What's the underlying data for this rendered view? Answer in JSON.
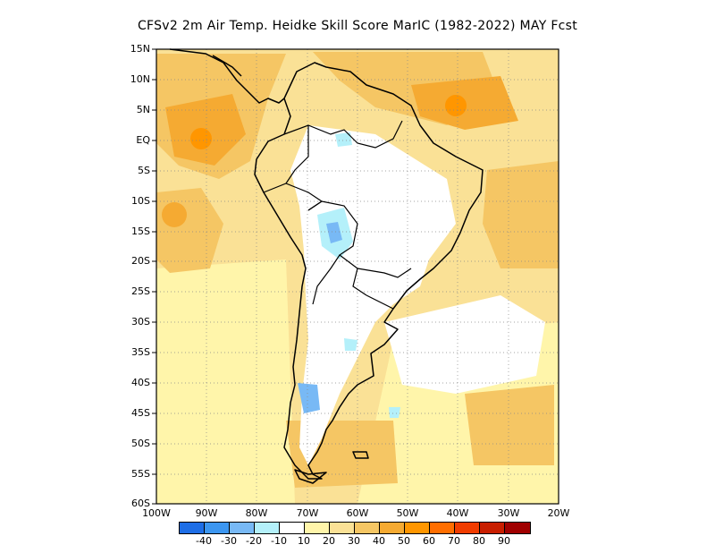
{
  "title": "CFSv2  2m Air Temp. Heidke Skill Score MarIC (1982-2022) MAY Fcst",
  "axes": {
    "y_labels": [
      "15N",
      "10N",
      "5N",
      "EQ",
      "5S",
      "10S",
      "15S",
      "20S",
      "25S",
      "30S",
      "35S",
      "40S",
      "45S",
      "50S",
      "55S",
      "60S"
    ],
    "x_labels": [
      "100W",
      "90W",
      "80W",
      "70W",
      "60W",
      "50W",
      "40W",
      "30W",
      "20W"
    ]
  },
  "colorbar": {
    "colors": [
      "#1e6ee6",
      "#3c96f0",
      "#78b9f5",
      "#b4f0fa",
      "#ffffff",
      "#fff5aa",
      "#fae196",
      "#f5c664",
      "#f5aa32",
      "#ff9600",
      "#ff6e00",
      "#f03c00",
      "#c81e00",
      "#a00000"
    ],
    "labels": [
      "-40",
      "-30",
      "-20",
      "-10",
      "10",
      "20",
      "30",
      "40",
      "50",
      "60",
      "70",
      "80",
      "90"
    ]
  },
  "map": {
    "region": "South America",
    "lon_range": [
      -100,
      -20
    ],
    "lat_range": [
      -60,
      15
    ],
    "gridlines": "dotted"
  }
}
